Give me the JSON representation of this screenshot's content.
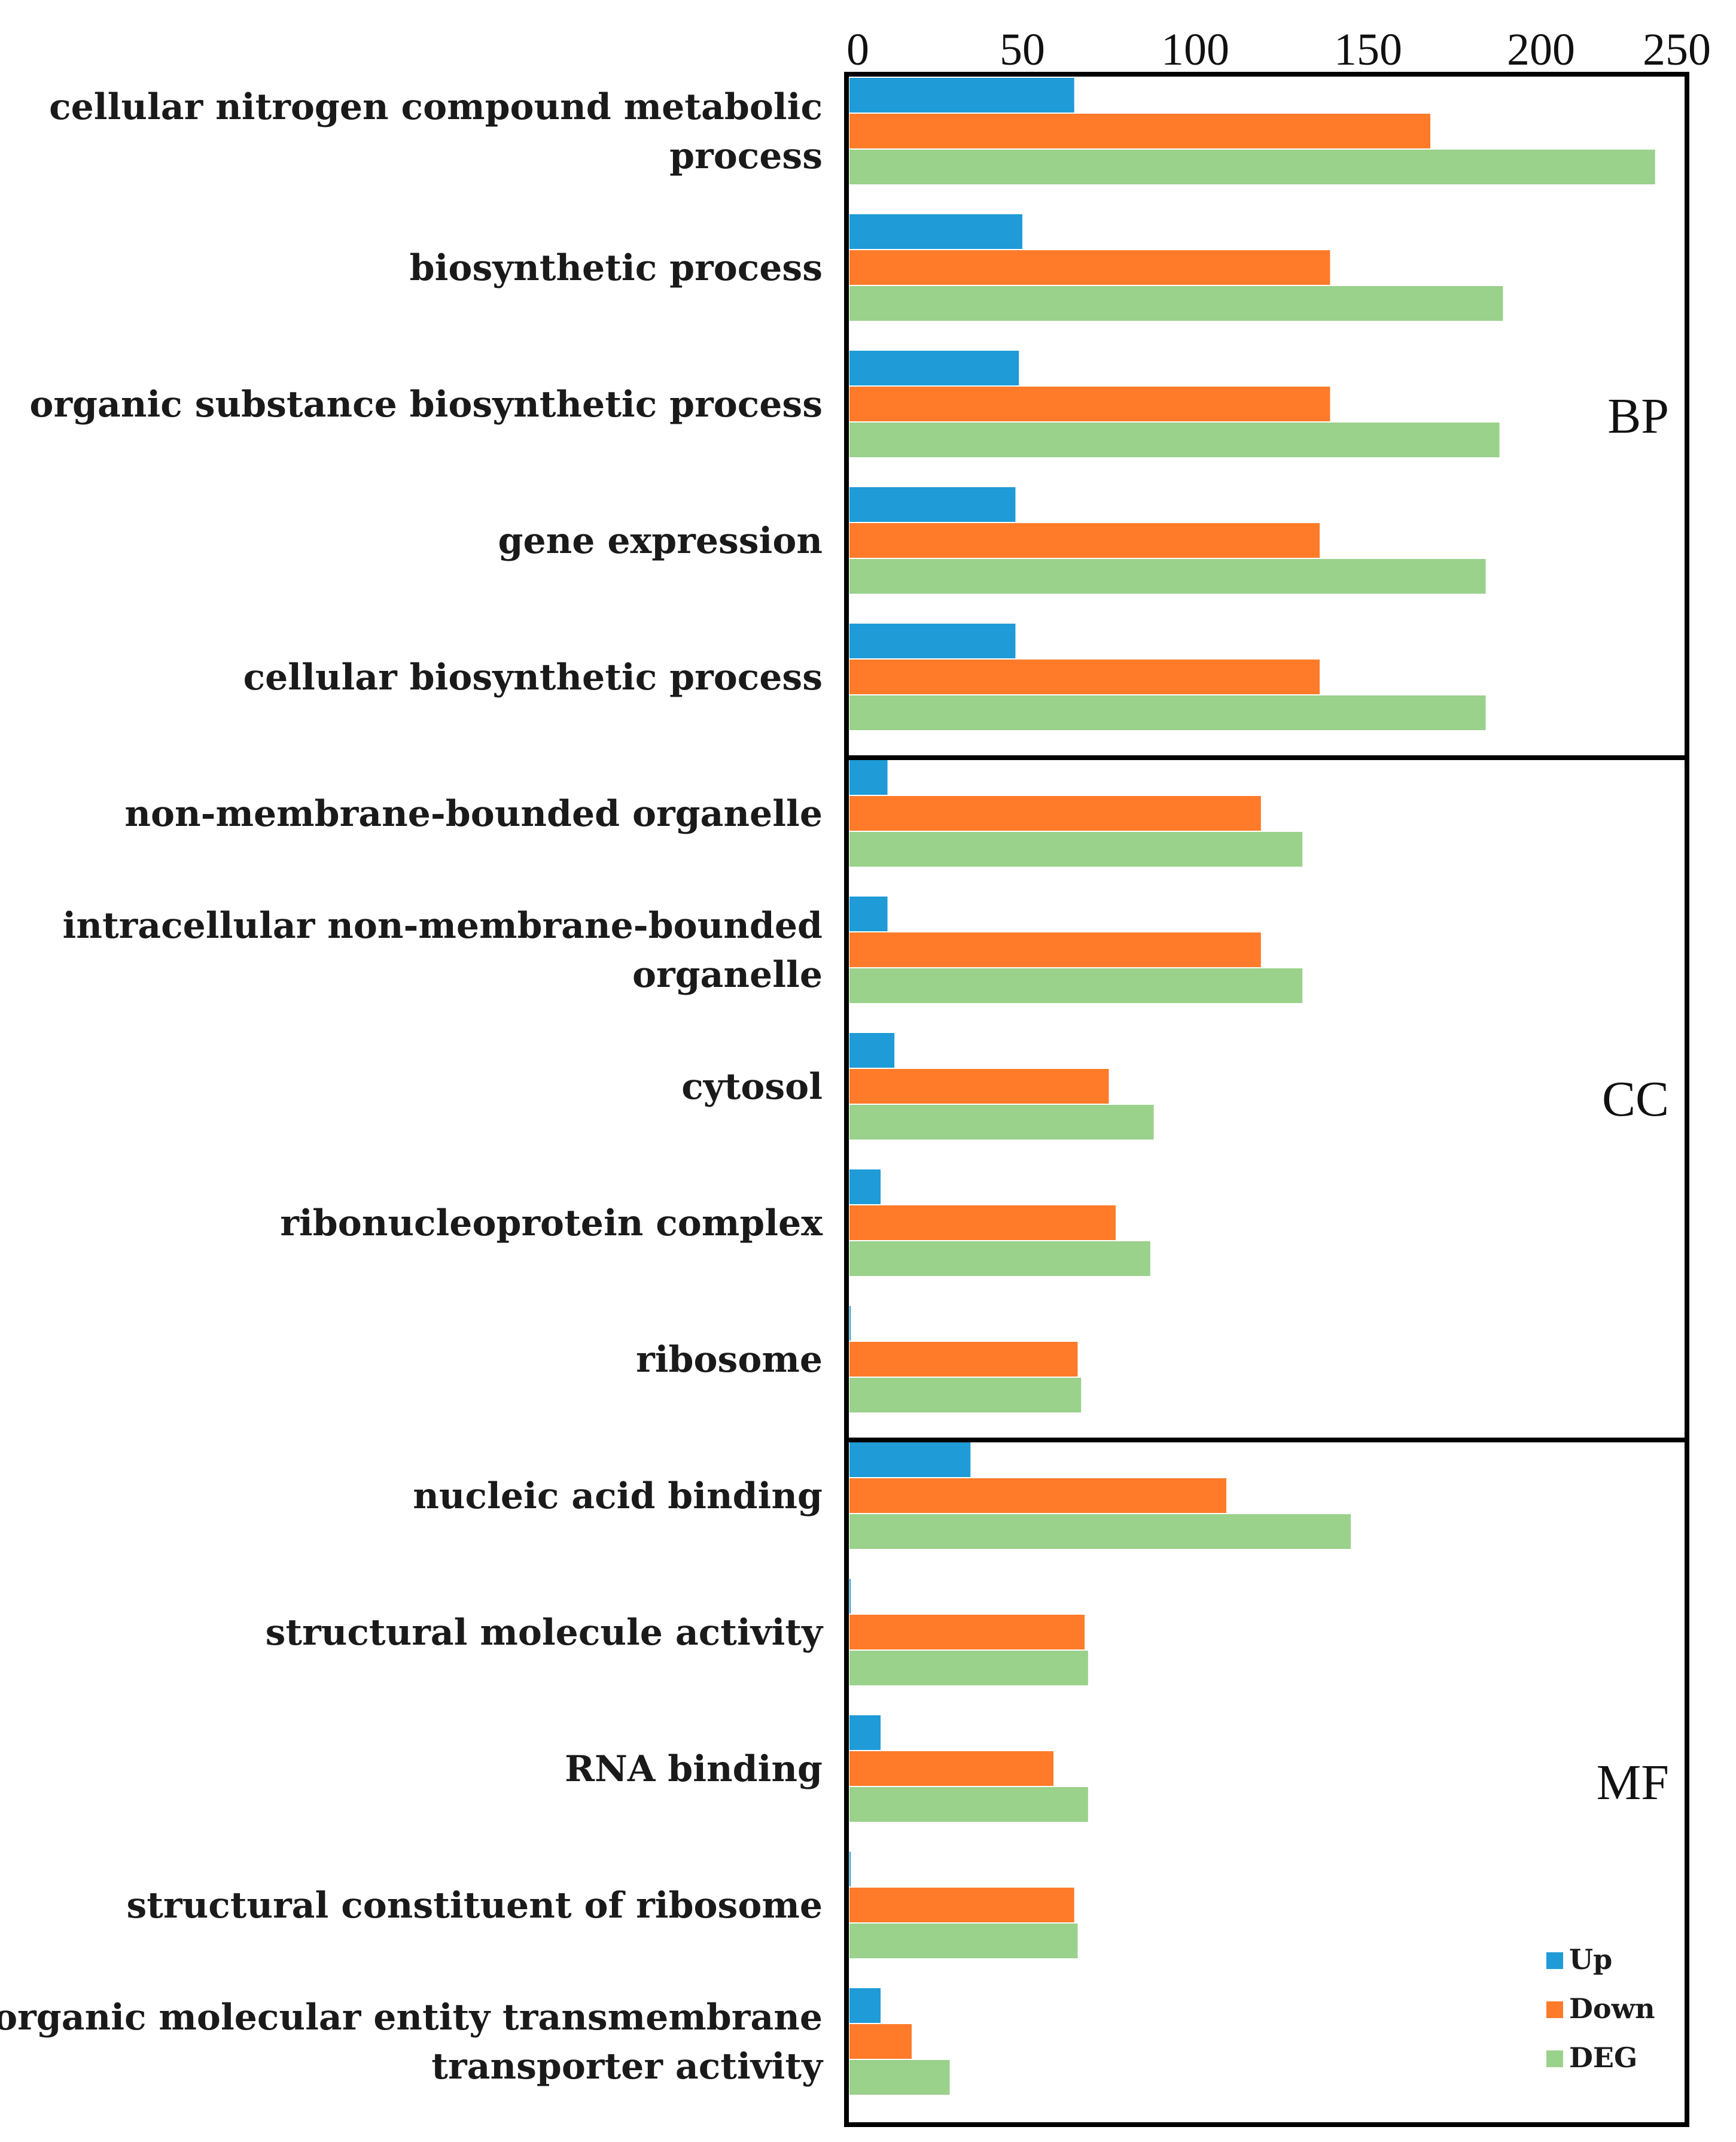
{
  "chart_data": {
    "type": "bar",
    "orientation": "horizontal",
    "title": "",
    "xlabel": "",
    "ylabel": "",
    "xlim": [
      0,
      250
    ],
    "x_ticks": [
      "0",
      "50",
      "100",
      "150",
      "200",
      "250"
    ],
    "x_axis_position": "top",
    "grid": false,
    "legend_position": "bottom-right",
    "categories": [
      [
        "cellular nitrogen compound metabolic",
        "process"
      ],
      [
        "biosynthetic process"
      ],
      [
        "organic substance biosynthetic process"
      ],
      [
        "gene expression"
      ],
      [
        "cellular biosynthetic process"
      ],
      [
        "non-membrane-bounded organelle"
      ],
      [
        "intracellular non-membrane-bounded",
        "organelle"
      ],
      [
        "cytosol"
      ],
      [
        "ribonucleoprotein complex"
      ],
      [
        "ribosome"
      ],
      [
        "nucleic acid binding"
      ],
      [
        "structural molecule activity"
      ],
      [
        "RNA binding"
      ],
      [
        "structural constituent of ribosome"
      ],
      [
        "inorganic molecular entity transmembrane",
        "transporter activity"
      ]
    ],
    "sections": [
      {
        "name": "BP",
        "count": 5
      },
      {
        "name": "CC",
        "count": 5
      },
      {
        "name": "MF",
        "count": 5
      }
    ],
    "series": [
      {
        "name": "Up",
        "color": "#1f9bd7",
        "values": [
          65,
          50,
          49,
          48,
          48,
          11,
          11,
          13,
          9,
          0,
          35,
          0,
          9,
          0,
          9
        ]
      },
      {
        "name": "Down",
        "color": "#ff7b29",
        "values": [
          168,
          139,
          139,
          136,
          136,
          119,
          119,
          75,
          77,
          66,
          109,
          68,
          59,
          65,
          18
        ]
      },
      {
        "name": "DEG",
        "color": "#9ad18b",
        "values": [
          233,
          189,
          188,
          184,
          184,
          131,
          131,
          88,
          87,
          67,
          145,
          69,
          69,
          66,
          29
        ]
      }
    ]
  }
}
